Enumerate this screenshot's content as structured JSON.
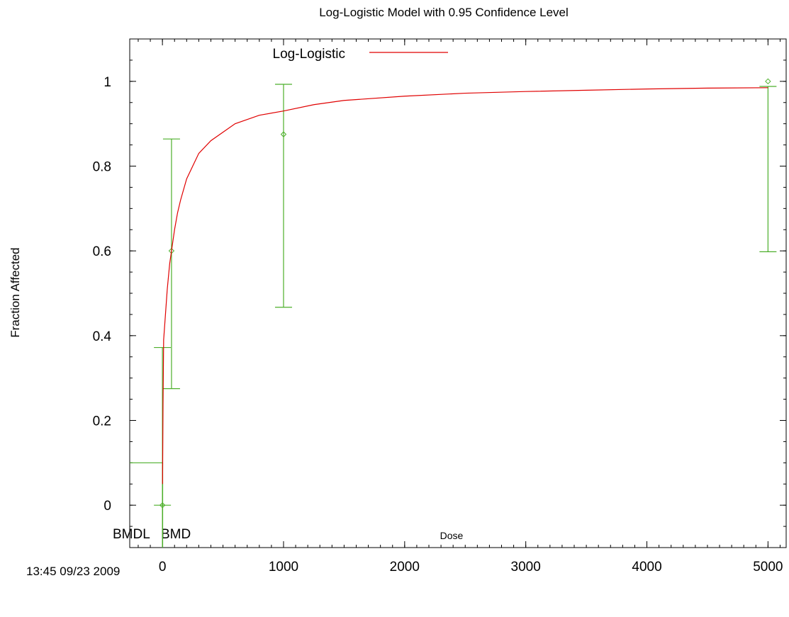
{
  "chart_data": {
    "type": "line",
    "title": "Log-Logistic Model with 0.95 Confidence Level",
    "xlabel": "Dose",
    "ylabel": "Fraction Affected",
    "xlim": [
      -270,
      5150
    ],
    "ylim": [
      -0.1,
      1.1
    ],
    "x_ticks": [
      0,
      1000,
      2000,
      3000,
      4000,
      5000
    ],
    "y_ticks": [
      0,
      0.2,
      0.4,
      0.6,
      0.8,
      1
    ],
    "legend": {
      "entries": [
        "Log-Logistic"
      ],
      "placement": "top"
    },
    "colors": {
      "model": "#e00000",
      "data": "#4caf2a"
    },
    "model": {
      "name": "Log-Logistic",
      "x": [
        1,
        5,
        10,
        20,
        30,
        40,
        50,
        60,
        75,
        90,
        100,
        125,
        150,
        200,
        250,
        300,
        400,
        500,
        600,
        800,
        1000,
        1250,
        1500,
        2000,
        2500,
        3000,
        3500,
        4000,
        4500,
        5000
      ],
      "y": [
        0.05,
        0.24,
        0.39,
        0.43,
        0.47,
        0.51,
        0.54,
        0.57,
        0.6,
        0.63,
        0.65,
        0.69,
        0.72,
        0.77,
        0.8,
        0.83,
        0.86,
        0.88,
        0.9,
        0.92,
        0.93,
        0.945,
        0.955,
        0.965,
        0.972,
        0.976,
        0.979,
        0.982,
        0.984,
        0.985
      ]
    },
    "observed": {
      "x": [
        0,
        75,
        1000,
        5000
      ],
      "y": [
        0,
        0.6,
        0.875,
        1.0
      ],
      "lower": [
        0,
        0.275,
        0.467,
        0.598
      ],
      "upper": [
        0.372,
        0.864,
        0.993,
        0.988
      ]
    },
    "bmr": 0.1,
    "bmdl": 0,
    "bmd": 2,
    "bmdl_label": "BMDL",
    "bmd_label": "BMD",
    "timestamp": "13:45 09/23 2009"
  }
}
